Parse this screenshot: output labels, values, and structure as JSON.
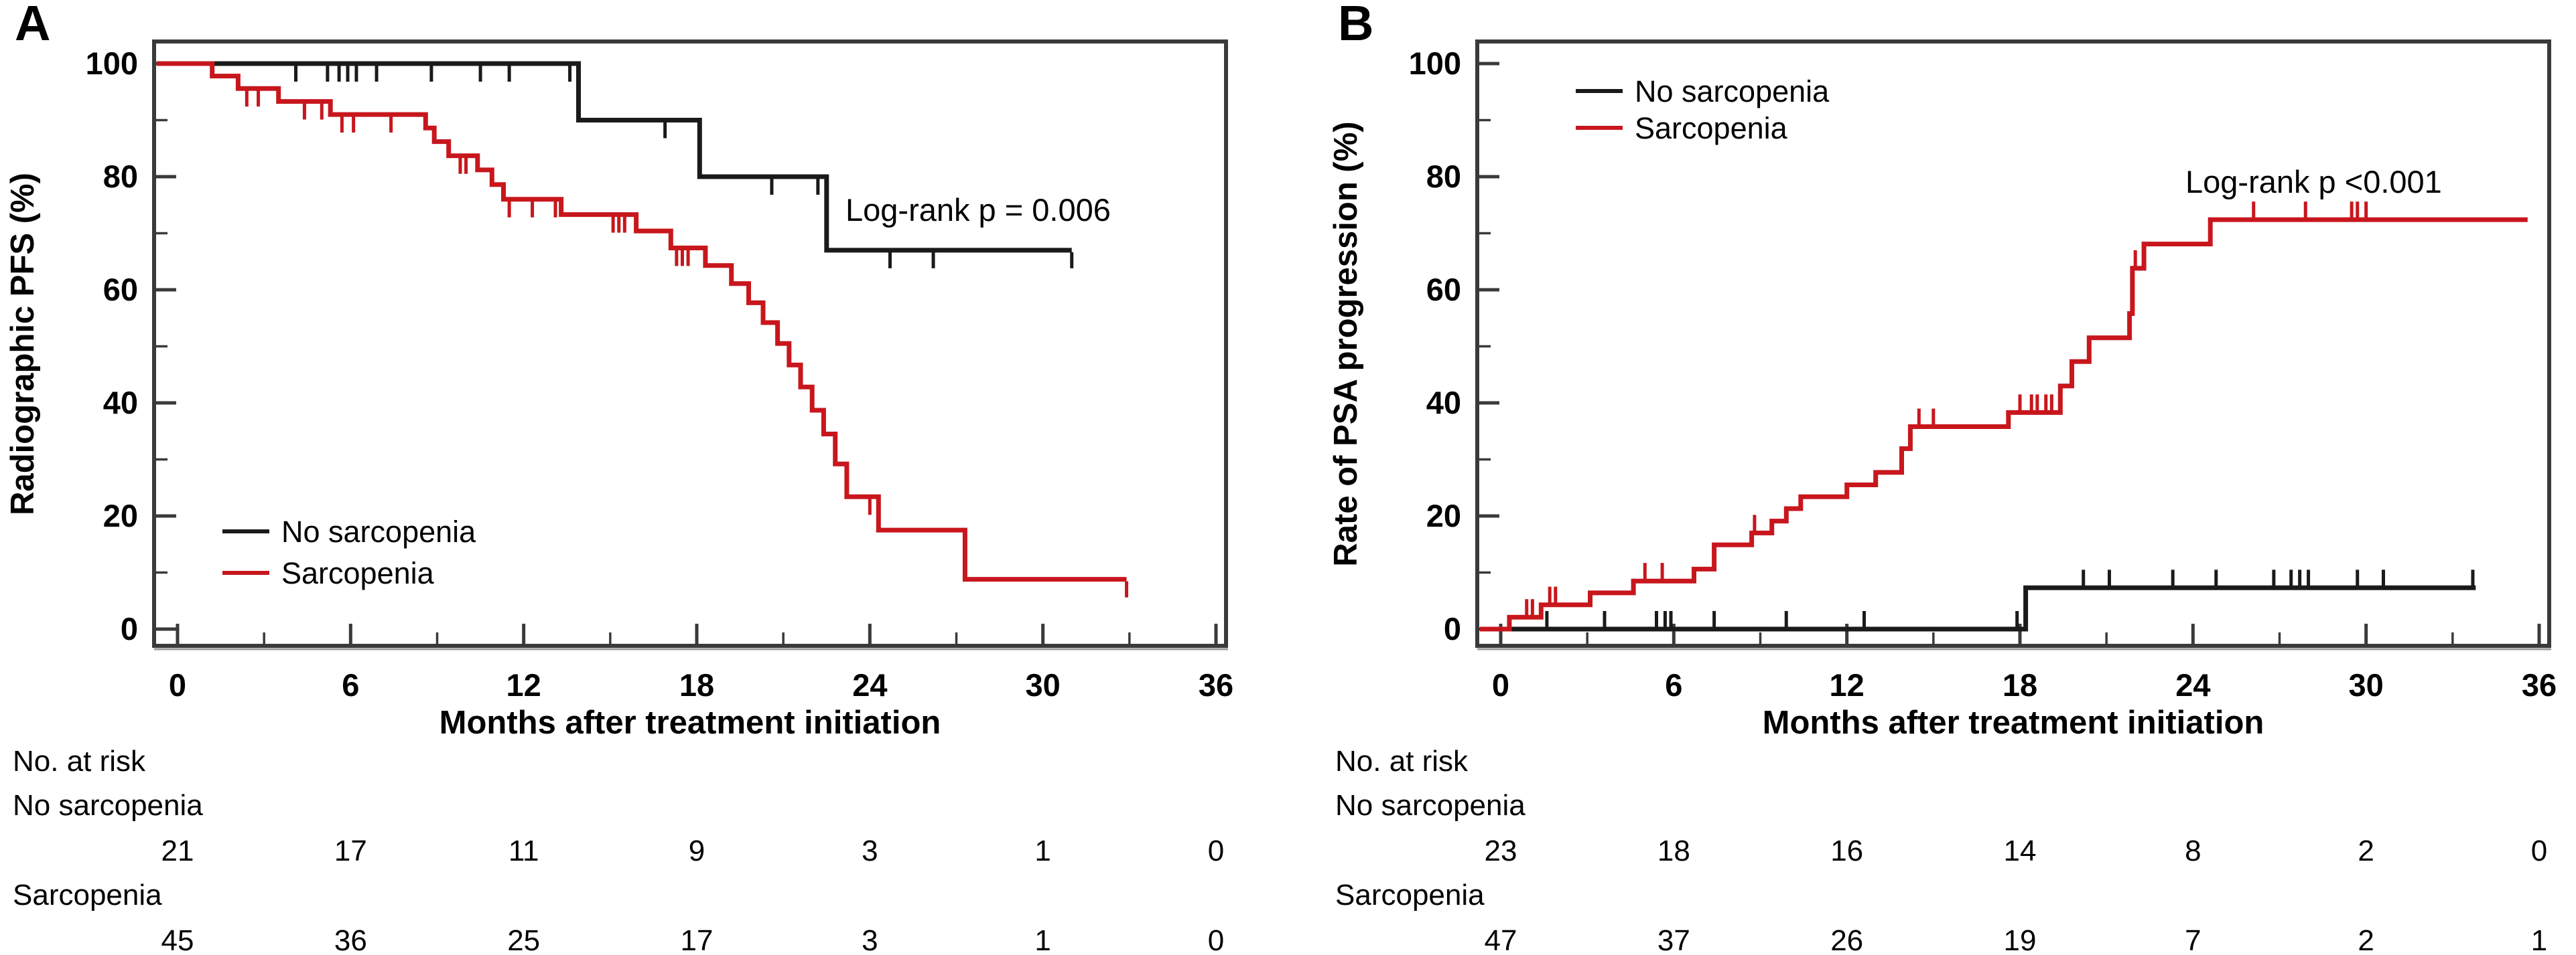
{
  "colors": {
    "no_sarcopenia": "#1a1a1a",
    "sarcopenia": "#c8161d",
    "frame": "#3a3a3a"
  },
  "chart_data": [
    {
      "type": "line",
      "subtype": "kaplan_meier_step",
      "panel_label": "A",
      "ylabel": "Radiographic PFS (%)",
      "xlabel": "Months after treatment initiation",
      "p_value": "Log-rank p = 0.006",
      "xlim": [
        0,
        36
      ],
      "ylim": [
        0,
        100
      ],
      "x_ticks_major": [
        0,
        6,
        12,
        18,
        24,
        30,
        36
      ],
      "x_ticks_minor": [
        3,
        9,
        15,
        21,
        27,
        33
      ],
      "y_ticks_major": [
        0,
        20,
        40,
        60,
        80,
        100
      ],
      "y_ticks_minor": [
        10,
        30,
        50,
        70,
        90
      ],
      "grid": false,
      "legend_position": "bottom-left",
      "censor_marks": "down",
      "series": [
        {
          "name": "No sarcopenia",
          "color": "#1a1a1a",
          "points": [
            [
              0,
              100
            ],
            [
              13.9,
              90
            ],
            [
              18.1,
              80
            ],
            [
              22.5,
              67
            ]
          ],
          "end_t": 31.0,
          "censors": [
            [
              4.1,
              100
            ],
            [
              5.2,
              100
            ],
            [
              5.6,
              100
            ],
            [
              5.9,
              100
            ],
            [
              6.2,
              100
            ],
            [
              6.9,
              100
            ],
            [
              8.8,
              100
            ],
            [
              10.5,
              100
            ],
            [
              11.5,
              100
            ],
            [
              13.6,
              100
            ],
            [
              16.9,
              90
            ],
            [
              20.6,
              80
            ],
            [
              22.2,
              80
            ],
            [
              24.7,
              67
            ],
            [
              26.2,
              67
            ],
            [
              31.0,
              67
            ]
          ]
        },
        {
          "name": "Sarcopenia",
          "color": "#c8161d",
          "points": [
            [
              0,
              100
            ],
            [
              1.2,
              97.8
            ],
            [
              2.1,
              95.6
            ],
            [
              3.5,
              93.3
            ],
            [
              5.3,
              91
            ],
            [
              8.6,
              88.6
            ],
            [
              8.9,
              86.2
            ],
            [
              9.4,
              83.7
            ],
            [
              10.4,
              81.2
            ],
            [
              10.9,
              78.6
            ],
            [
              11.3,
              76
            ],
            [
              13.3,
              73.3
            ],
            [
              15.9,
              70.4
            ],
            [
              17.1,
              67.4
            ],
            [
              18.3,
              64.3
            ],
            [
              19.2,
              61.1
            ],
            [
              19.8,
              57.7
            ],
            [
              20.3,
              54.2
            ],
            [
              20.8,
              50.5
            ],
            [
              21.2,
              46.7
            ],
            [
              21.6,
              42.8
            ],
            [
              22.0,
              38.7
            ],
            [
              22.4,
              34.5
            ],
            [
              22.8,
              29.2
            ],
            [
              23.2,
              23.4
            ],
            [
              24.3,
              17.5
            ],
            [
              27.3,
              8.8
            ]
          ],
          "end_t": 32.9,
          "censors": [
            [
              2.4,
              95.6
            ],
            [
              2.8,
              95.6
            ],
            [
              4.4,
              93.3
            ],
            [
              5.0,
              93.3
            ],
            [
              5.7,
              91
            ],
            [
              6.1,
              91
            ],
            [
              7.4,
              91
            ],
            [
              9.8,
              83.7
            ],
            [
              10.0,
              83.7
            ],
            [
              11.5,
              76
            ],
            [
              12.3,
              76
            ],
            [
              13.1,
              76
            ],
            [
              15.1,
              73.3
            ],
            [
              15.3,
              73.3
            ],
            [
              15.5,
              73.3
            ],
            [
              17.3,
              67.4
            ],
            [
              17.5,
              67.4
            ],
            [
              17.7,
              67.4
            ],
            [
              24.0,
              23.4
            ],
            [
              32.9,
              8.8
            ]
          ]
        }
      ],
      "risk_table": {
        "title": "No. at risk",
        "time_points": [
          0,
          6,
          12,
          18,
          24,
          30,
          36
        ],
        "rows": [
          {
            "label": "No sarcopenia",
            "values": [
              "21",
              "17",
              "11",
              "9",
              "3",
              "1",
              "0"
            ]
          },
          {
            "label": "Sarcopenia",
            "values": [
              "45",
              "36",
              "25",
              "17",
              "3",
              "1",
              "0"
            ]
          }
        ]
      }
    },
    {
      "type": "line",
      "subtype": "cumulative_incidence_step",
      "panel_label": "B",
      "ylabel": "Rate of PSA progression (%)",
      "xlabel": "Months after treatment initiation",
      "p_value": "Log-rank p <0.001",
      "xlim": [
        0,
        36
      ],
      "ylim": [
        0,
        100
      ],
      "x_ticks_major": [
        0,
        6,
        12,
        18,
        24,
        30,
        36
      ],
      "x_ticks_minor": [
        3,
        9,
        15,
        21,
        27,
        33
      ],
      "y_ticks_major": [
        0,
        20,
        40,
        60,
        80,
        100
      ],
      "y_ticks_minor": [
        10,
        30,
        50,
        70,
        90
      ],
      "grid": false,
      "legend_position": "top-left",
      "censor_marks": "up",
      "series": [
        {
          "name": "No sarcopenia",
          "color": "#1a1a1a",
          "points": [
            [
              0,
              0
            ],
            [
              18.2,
              7.3
            ]
          ],
          "end_t": 33.8,
          "censors": [
            [
              1.6,
              0
            ],
            [
              3.6,
              0
            ],
            [
              5.4,
              0
            ],
            [
              5.7,
              0
            ],
            [
              5.9,
              0
            ],
            [
              7.4,
              0
            ],
            [
              9.9,
              0
            ],
            [
              12.6,
              0
            ],
            [
              17.9,
              0
            ],
            [
              20.2,
              7.3
            ],
            [
              21.1,
              7.3
            ],
            [
              23.3,
              7.3
            ],
            [
              24.8,
              7.3
            ],
            [
              26.8,
              7.3
            ],
            [
              27.4,
              7.3
            ],
            [
              27.7,
              7.3
            ],
            [
              28.0,
              7.3
            ],
            [
              29.7,
              7.3
            ],
            [
              30.6,
              7.3
            ],
            [
              33.7,
              7.3
            ]
          ]
        },
        {
          "name": "Sarcopenia",
          "color": "#c8161d",
          "points": [
            [
              0,
              0
            ],
            [
              0.3,
              2.1
            ],
            [
              1.4,
              4.3
            ],
            [
              3.1,
              6.4
            ],
            [
              4.6,
              8.5
            ],
            [
              6.7,
              10.6
            ],
            [
              7.4,
              14.9
            ],
            [
              8.7,
              17
            ],
            [
              9.4,
              19.1
            ],
            [
              9.9,
              21.3
            ],
            [
              10.4,
              23.4
            ],
            [
              12.0,
              25.5
            ],
            [
              13.0,
              27.7
            ],
            [
              13.9,
              31.9
            ],
            [
              14.2,
              35.8
            ],
            [
              17.6,
              38.3
            ],
            [
              19.4,
              43
            ],
            [
              19.8,
              47.3
            ],
            [
              20.4,
              51.5
            ],
            [
              21.8,
              55.8
            ],
            [
              21.9,
              63.8
            ],
            [
              22.3,
              68.1
            ],
            [
              24.6,
              72.4
            ]
          ],
          "end_t": 35.6,
          "censors": [
            [
              0.9,
              2.1
            ],
            [
              1.1,
              2.1
            ],
            [
              1.7,
              4.3
            ],
            [
              1.9,
              4.3
            ],
            [
              5.0,
              8.5
            ],
            [
              5.6,
              8.5
            ],
            [
              8.8,
              17
            ],
            [
              14.5,
              35.8
            ],
            [
              15.0,
              35.8
            ],
            [
              18.0,
              38.3
            ],
            [
              18.4,
              38.3
            ],
            [
              18.6,
              38.3
            ],
            [
              18.9,
              38.3
            ],
            [
              19.1,
              38.3
            ],
            [
              19.4,
              38.3
            ],
            [
              22.0,
              63.8
            ],
            [
              26.1,
              72.4
            ],
            [
              27.9,
              72.4
            ],
            [
              29.5,
              72.4
            ],
            [
              29.7,
              72.4
            ],
            [
              30.0,
              72.4
            ]
          ]
        }
      ],
      "risk_table": {
        "title": "No. at risk",
        "time_points": [
          0,
          6,
          12,
          18,
          24,
          30,
          36
        ],
        "rows": [
          {
            "label": "No sarcopenia",
            "values": [
              "23",
              "18",
              "16",
              "14",
              "8",
              "2",
              "0"
            ]
          },
          {
            "label": "Sarcopenia",
            "values": [
              "47",
              "37",
              "26",
              "19",
              "7",
              "2",
              "1"
            ]
          }
        ]
      }
    }
  ]
}
